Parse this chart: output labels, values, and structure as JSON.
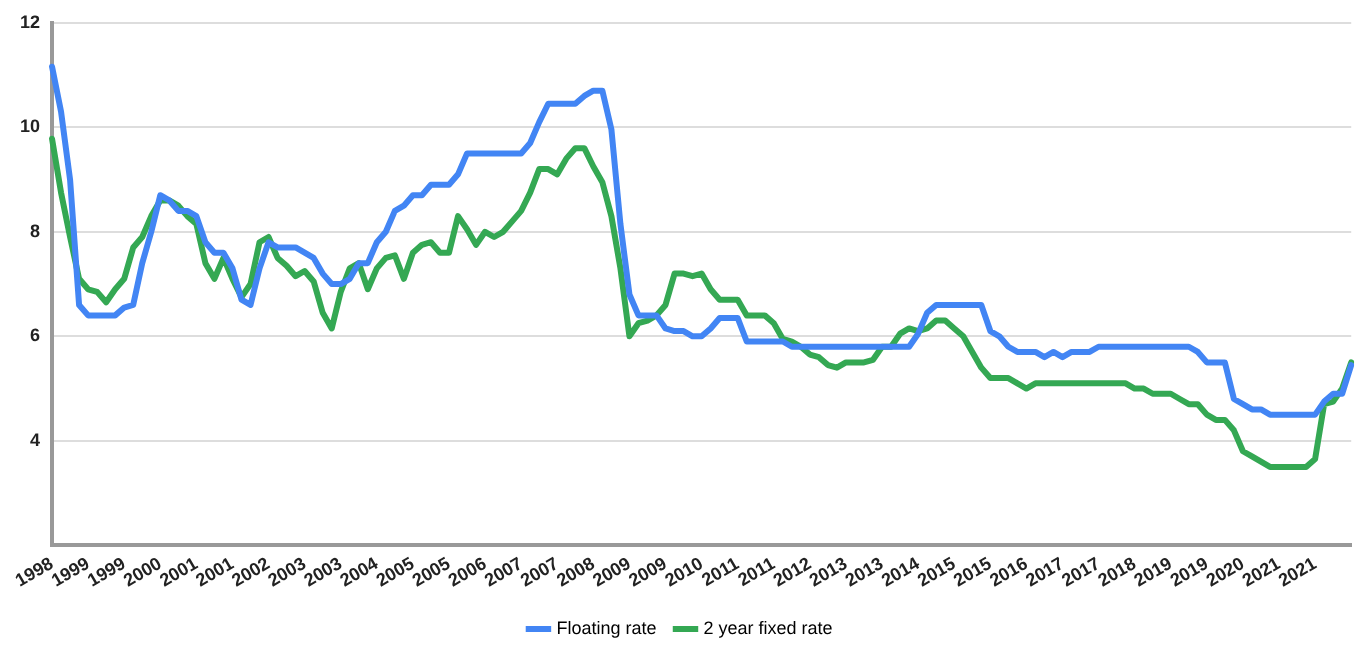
{
  "chart_data": {
    "type": "line",
    "categories": [
      "1998",
      null,
      null,
      null,
      "1999",
      null,
      null,
      null,
      "1999",
      null,
      null,
      null,
      "2000",
      null,
      null,
      null,
      "2001",
      null,
      null,
      null,
      "2001",
      null,
      null,
      null,
      "2002",
      null,
      null,
      null,
      "2003",
      null,
      null,
      null,
      "2003",
      null,
      null,
      null,
      "2004",
      null,
      null,
      null,
      "2005",
      null,
      null,
      null,
      "2005",
      null,
      null,
      null,
      "2006",
      null,
      null,
      null,
      "2007",
      null,
      null,
      null,
      "2007",
      null,
      null,
      null,
      "2008",
      null,
      null,
      null,
      "2009",
      null,
      null,
      null,
      "2009",
      null,
      null,
      null,
      "2010",
      null,
      null,
      null,
      "2011",
      null,
      null,
      null,
      "2011",
      null,
      null,
      null,
      "2012",
      null,
      null,
      null,
      "2013",
      null,
      null,
      null,
      "2013",
      null,
      null,
      null,
      "2014",
      null,
      null,
      null,
      "2015",
      null,
      null,
      null,
      "2015",
      null,
      null,
      null,
      "2016",
      null,
      null,
      null,
      "2017",
      null,
      null,
      null,
      "2017",
      null,
      null,
      null,
      "2018",
      null,
      null,
      null,
      "2019",
      null,
      null,
      null,
      "2019",
      null,
      null,
      null,
      "2020",
      null,
      null,
      null,
      "2021",
      null,
      null,
      null,
      "2021",
      null,
      null,
      null,
      null
    ],
    "series": [
      {
        "name": "Floating rate",
        "color": "#4285f4",
        "values": [
          11.16,
          10.3,
          9.0,
          6.6,
          6.4,
          6.4,
          6.4,
          6.4,
          6.55,
          6.6,
          7.4,
          8.0,
          8.7,
          8.6,
          8.4,
          8.4,
          8.3,
          7.8,
          7.6,
          7.6,
          7.3,
          6.7,
          6.6,
          7.3,
          7.8,
          7.7,
          7.7,
          7.7,
          7.6,
          7.5,
          7.2,
          7.0,
          7.0,
          7.1,
          7.4,
          7.4,
          7.8,
          8.0,
          8.4,
          8.5,
          8.7,
          8.7,
          8.9,
          8.9,
          8.9,
          9.1,
          9.5,
          9.5,
          9.5,
          9.5,
          9.5,
          9.5,
          9.5,
          9.7,
          10.1,
          10.45,
          10.45,
          10.45,
          10.45,
          10.6,
          10.7,
          10.7,
          9.96,
          8.15,
          6.8,
          6.4,
          6.4,
          6.4,
          6.15,
          6.1,
          6.1,
          6.0,
          6.0,
          6.15,
          6.35,
          6.35,
          6.35,
          5.9,
          5.9,
          5.9,
          5.9,
          5.9,
          5.8,
          5.8,
          5.8,
          5.8,
          5.8,
          5.8,
          5.8,
          5.8,
          5.8,
          5.8,
          5.8,
          5.8,
          5.8,
          5.8,
          6.05,
          6.45,
          6.6,
          6.6,
          6.6,
          6.6,
          6.6,
          6.6,
          6.1,
          6.0,
          5.8,
          5.7,
          5.7,
          5.7,
          5.6,
          5.7,
          5.6,
          5.7,
          5.7,
          5.7,
          5.8,
          5.8,
          5.8,
          5.8,
          5.8,
          5.8,
          5.8,
          5.8,
          5.8,
          5.8,
          5.8,
          5.7,
          5.5,
          5.5,
          5.5,
          4.8,
          4.7,
          4.6,
          4.6,
          4.5,
          4.5,
          4.5,
          4.5,
          4.5,
          4.5,
          4.75,
          4.9,
          4.9,
          5.45
        ]
      },
      {
        "name": "2 year fixed rate",
        "color": "#34a853",
        "values": [
          9.78,
          8.75,
          7.9,
          7.1,
          6.9,
          6.85,
          6.65,
          6.9,
          7.1,
          7.7,
          7.9,
          8.3,
          8.6,
          8.6,
          8.5,
          8.3,
          8.15,
          7.4,
          7.1,
          7.5,
          7.1,
          6.75,
          7.0,
          7.8,
          7.9,
          7.5,
          7.35,
          7.15,
          7.25,
          7.05,
          6.45,
          6.15,
          6.85,
          7.3,
          7.4,
          6.9,
          7.3,
          7.5,
          7.55,
          7.1,
          7.6,
          7.75,
          7.8,
          7.6,
          7.6,
          8.3,
          8.05,
          7.75,
          8.0,
          7.9,
          8.0,
          8.2,
          8.4,
          8.75,
          9.2,
          9.2,
          9.1,
          9.4,
          9.6,
          9.6,
          9.25,
          8.95,
          8.3,
          7.3,
          6.0,
          6.25,
          6.3,
          6.4,
          6.6,
          7.2,
          7.2,
          7.15,
          7.2,
          6.9,
          6.7,
          6.7,
          6.7,
          6.4,
          6.4,
          6.4,
          6.25,
          5.95,
          5.9,
          5.8,
          5.65,
          5.6,
          5.45,
          5.4,
          5.5,
          5.5,
          5.5,
          5.55,
          5.8,
          5.8,
          6.05,
          6.15,
          6.1,
          6.15,
          6.3,
          6.3,
          6.15,
          6.0,
          5.7,
          5.4,
          5.2,
          5.2,
          5.2,
          5.1,
          5.0,
          5.1,
          5.1,
          5.1,
          5.1,
          5.1,
          5.1,
          5.1,
          5.1,
          5.1,
          5.1,
          5.1,
          5.0,
          5.0,
          4.9,
          4.9,
          4.9,
          4.8,
          4.7,
          4.7,
          4.5,
          4.4,
          4.4,
          4.2,
          3.8,
          3.7,
          3.6,
          3.5,
          3.5,
          3.5,
          3.5,
          3.5,
          3.65,
          4.7,
          4.75,
          5.0,
          5.5
        ]
      }
    ],
    "ylim": [
      2,
      12
    ],
    "yticks": [
      4,
      6,
      8,
      10,
      12
    ],
    "grid": "y",
    "legend": "bottom",
    "marker": "none",
    "line_style": "solid"
  }
}
